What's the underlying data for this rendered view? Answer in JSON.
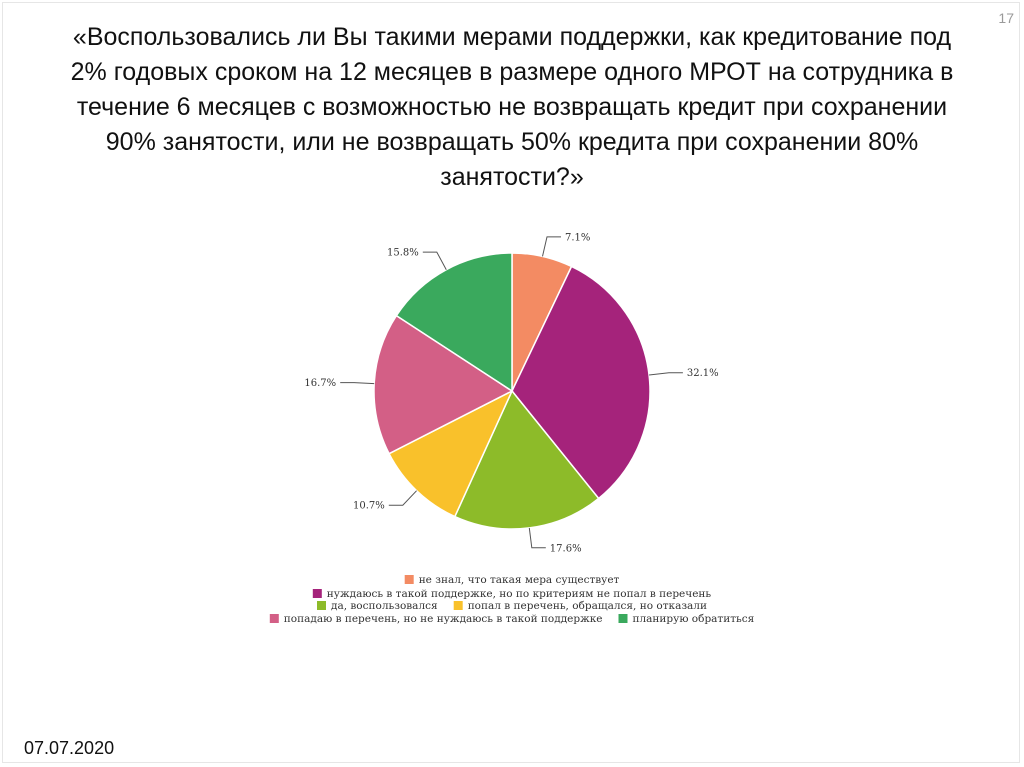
{
  "slide": {
    "number": "17",
    "title": "«Воспользовались ли Вы такими мерами поддержки, как кредитование под 2% годовых сроком на 12 месяцев в размере одного МРОТ на сотрудника в течение 6 месяцев с возможностью не возвращать кредит при сохранении 90% занятости, или не возвращать 50% кредита при сохранении 80% занятости?»",
    "date": "07.07.2020"
  },
  "chart_data": {
    "type": "pie",
    "categories": [
      "не знал, что такая мера существует",
      "нуждаюсь в такой поддержке, но по критериям не попал в перечень",
      "да, воспользовался",
      "попал в перечень, обращался, но отказали",
      "попадаю в перечень, но не нуждаюсь в такой поддержке",
      "планирую обратиться"
    ],
    "values": [
      7.1,
      32.1,
      17.6,
      10.7,
      16.7,
      15.8
    ],
    "labels": [
      "7.1%",
      "32.1%",
      "17.6%",
      "10.7%",
      "16.7%",
      "15.8%"
    ],
    "colors": [
      "#f38b63",
      "#a5237b",
      "#8dbb29",
      "#f9c12b",
      "#d35f86",
      "#3aa95d"
    ],
    "legend_position": "bottom"
  }
}
